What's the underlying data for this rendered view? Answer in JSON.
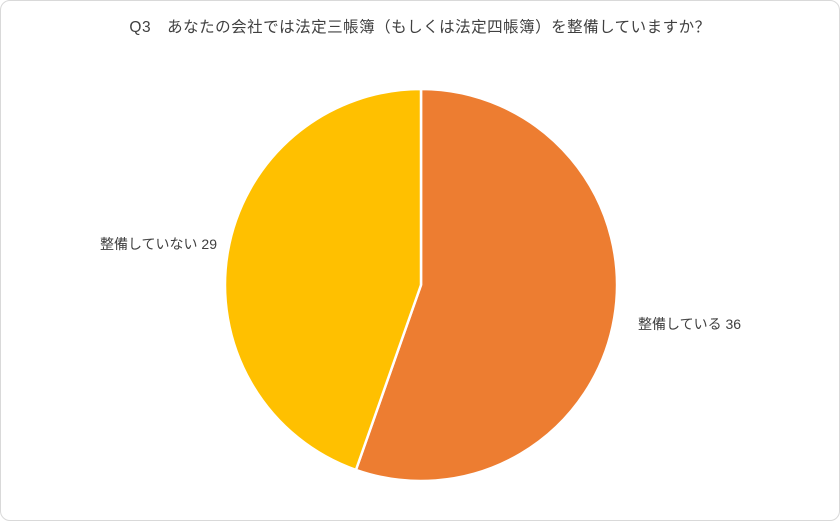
{
  "page": {
    "background": "#ffffff",
    "border_color": "#d9d9d9",
    "title_color": "#404040",
    "label_color": "#404040"
  },
  "chart_data": {
    "type": "pie",
    "title": "Q3　あなたの会社では法定三帳簿（もしくは法定四帳簿）を整備していますか？",
    "total": 65,
    "start_angle_deg": -90,
    "direction": "clockwise",
    "slice_border_color": "#ffffff",
    "legend_position": "none",
    "labels_position": "outside",
    "slices": [
      {
        "label": "整備している",
        "value": 36,
        "color": "#ED7D31",
        "data_label": "整備している 36",
        "label_side": "right"
      },
      {
        "label": "整備していない",
        "value": 29,
        "color": "#FFC000",
        "data_label": "整備していない 29",
        "label_side": "left"
      }
    ]
  }
}
